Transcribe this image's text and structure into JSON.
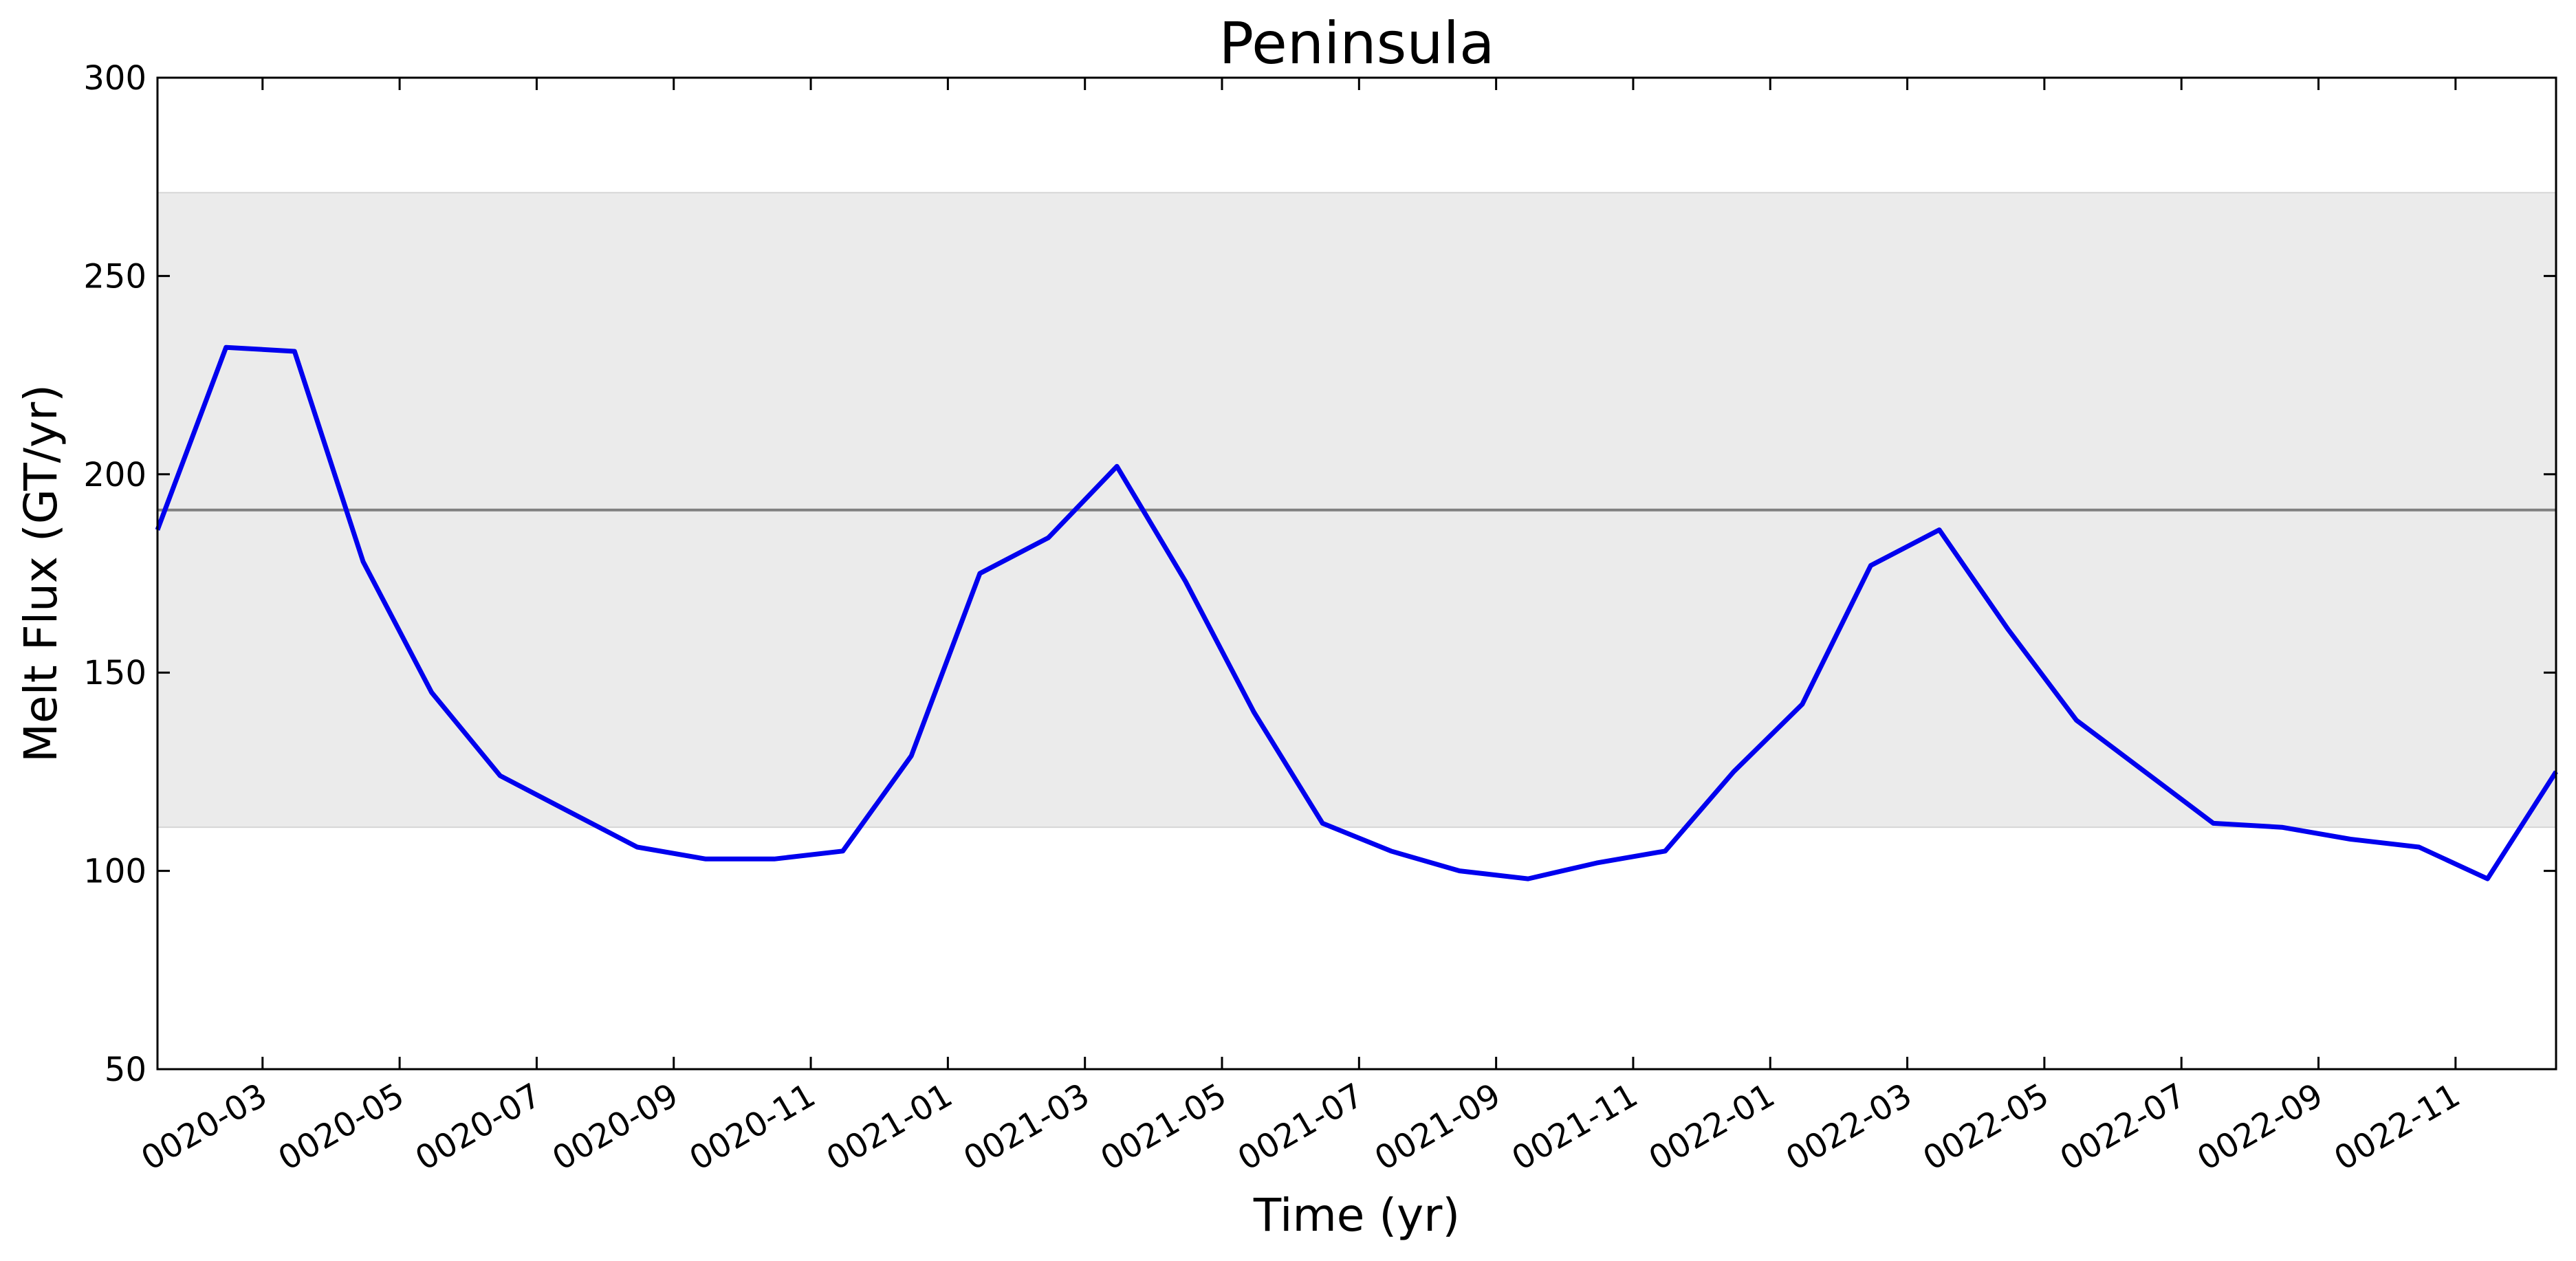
{
  "chart_data": {
    "type": "line",
    "title": "Peninsula",
    "xlabel": "Time (yr)",
    "ylabel": "Melt Flux (GT/yr)",
    "ylim": [
      50,
      300
    ],
    "xlim": [
      "0020-01-15",
      "0022-12-15"
    ],
    "yticks": [
      50,
      100,
      150,
      200,
      250,
      300
    ],
    "xticks": [
      "0020-03",
      "0020-05",
      "0020-07",
      "0020-09",
      "0020-11",
      "0021-01",
      "0021-03",
      "0021-05",
      "0021-07",
      "0021-09",
      "0021-11",
      "0022-01",
      "0022-03",
      "0022-05",
      "0022-07",
      "0022-09",
      "0022-11"
    ],
    "grid": false,
    "mean_line": {
      "value": 191,
      "color": "#808080"
    },
    "band": {
      "range": [
        111,
        271
      ],
      "color": "#ebebeb"
    },
    "series": [
      {
        "color": "#0000ee",
        "x": [
          "0020-01-15",
          "0020-02-15",
          "0020-03-15",
          "0020-04-15",
          "0020-05-15",
          "0020-06-15",
          "0020-07-15",
          "0020-08-15",
          "0020-09-15",
          "0020-10-15",
          "0020-11-15",
          "0020-12-15",
          "0021-01-15",
          "0021-02-15",
          "0021-03-15",
          "0021-04-15",
          "0021-05-15",
          "0021-06-15",
          "0021-07-15",
          "0021-08-15",
          "0021-09-15",
          "0021-10-15",
          "0021-11-15",
          "0021-12-15",
          "0022-01-15",
          "0022-02-15",
          "0022-03-15",
          "0022-04-15",
          "0022-05-15",
          "0022-06-15",
          "0022-07-15",
          "0022-08-15",
          "0022-09-15",
          "0022-10-15",
          "0022-11-15",
          "0022-12-15"
        ],
        "values": [
          186,
          232,
          231,
          178,
          145,
          124,
          115,
          106,
          103,
          103,
          105,
          129,
          175,
          184,
          202,
          173,
          140,
          112,
          105,
          100,
          98,
          102,
          105,
          125,
          142,
          177,
          186,
          161,
          138,
          125,
          112,
          111,
          108,
          106,
          98,
          125
        ]
      }
    ]
  }
}
